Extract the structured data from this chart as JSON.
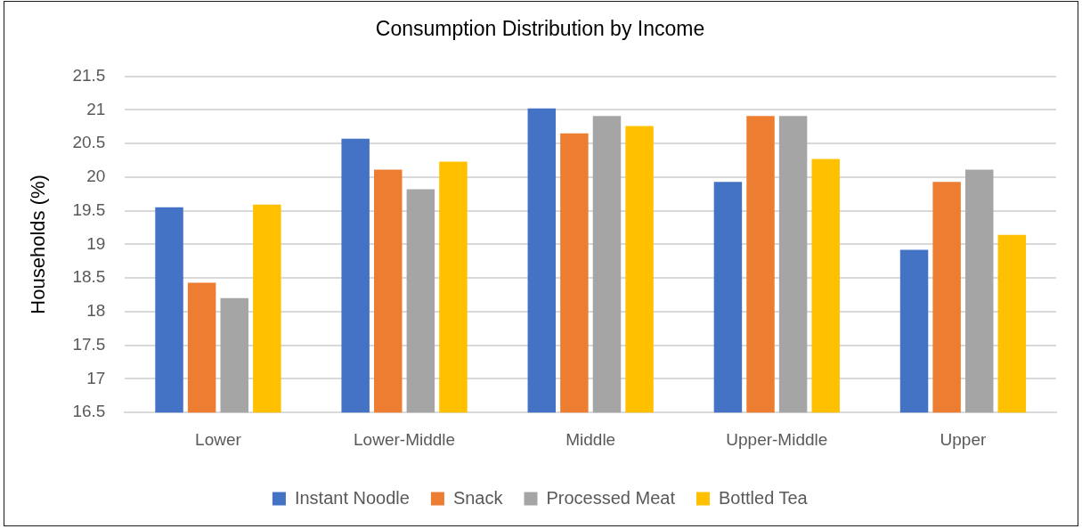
{
  "chart_data": {
    "type": "bar",
    "title": "Consumption Distribution by Income",
    "ylabel": "Households (%)",
    "categories": [
      "Lower",
      "Lower-Middle",
      "Middle",
      "Upper-Middle",
      "Upper"
    ],
    "series": [
      {
        "name": "Instant Noodle",
        "color": "#4472c4",
        "values": [
          19.55,
          20.57,
          21.02,
          19.93,
          18.92
        ]
      },
      {
        "name": "Snack",
        "color": "#ed7d31",
        "values": [
          18.43,
          20.11,
          20.65,
          20.91,
          19.93
        ]
      },
      {
        "name": "Processed Meat",
        "color": "#a5a5a5",
        "values": [
          18.2,
          19.82,
          20.91,
          20.91,
          20.11
        ]
      },
      {
        "name": "Bottled Tea",
        "color": "#ffc000",
        "values": [
          19.59,
          20.23,
          20.76,
          20.27,
          19.14
        ]
      }
    ],
    "ylim": [
      16.5,
      21.5
    ],
    "yticks": [
      16.5,
      17,
      17.5,
      18,
      18.5,
      19,
      19.5,
      20,
      20.5,
      21,
      21.5
    ],
    "grid": "y",
    "legend": "bottom"
  }
}
